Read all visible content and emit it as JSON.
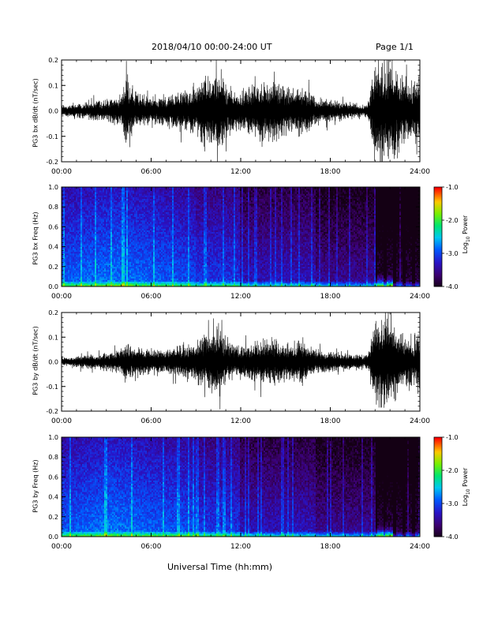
{
  "header": {
    "date_range": "2018/04/10   00:00-24:00 UT",
    "page_label": "Page 1/1"
  },
  "footer": {
    "xlabel": "Universal Time (hh:mm)"
  },
  "colorbar": {
    "label": "Log10 Power",
    "ticks": [
      "-1.0",
      "-2.0",
      "-3.0",
      "-4.0"
    ],
    "range": [
      -4.0,
      -1.0
    ]
  },
  "chart_data": [
    {
      "type": "line",
      "ylabel": "PG3 bx dB/dt (nT/sec)",
      "xlim": [
        0,
        24
      ],
      "ylim": [
        -0.2,
        0.2
      ],
      "xticks": [
        "00:00",
        "06:00",
        "12:00",
        "18:00",
        "24:00"
      ],
      "yticks": [
        "0.2",
        "0.1",
        "0.0",
        "-0.1",
        "-0.2"
      ],
      "envelope": {
        "x": [
          0,
          1,
          2,
          3,
          4,
          4.3,
          4.6,
          5,
          6,
          7,
          8,
          9,
          9.5,
          10,
          10.5,
          11,
          12,
          13,
          14,
          15,
          16,
          17,
          18,
          19,
          20,
          20.5,
          21,
          21.5,
          22,
          22.5,
          23,
          23.5,
          24
        ],
        "amp": [
          0.025,
          0.03,
          0.04,
          0.05,
          0.07,
          0.17,
          0.12,
          0.08,
          0.06,
          0.07,
          0.09,
          0.1,
          0.17,
          0.14,
          0.2,
          0.13,
          0.08,
          0.12,
          0.14,
          0.1,
          0.12,
          0.06,
          0.05,
          0.04,
          0.03,
          0.03,
          0.22,
          0.22,
          0.22,
          0.18,
          0.15,
          0.12,
          0.2
        ]
      }
    },
    {
      "type": "heatmap",
      "ylabel": "PG3 bx Freq (Hz)",
      "xlim": [
        0,
        24
      ],
      "ylim": [
        0.0,
        1.0
      ],
      "xticks": [
        "00:00",
        "06:00",
        "12:00",
        "18:00",
        "24:00"
      ],
      "yticks": [
        "1.0",
        "0.8",
        "0.6",
        "0.4",
        "0.2",
        "0.0"
      ],
      "zlim": [
        -4.0,
        -1.0
      ]
    },
    {
      "type": "line",
      "ylabel": "PG3 by dB/dt (nT/sec)",
      "xlim": [
        0,
        24
      ],
      "ylim": [
        -0.2,
        0.2
      ],
      "xticks": [
        "00:00",
        "06:00",
        "12:00",
        "18:00",
        "24:00"
      ],
      "yticks": [
        "0.2",
        "0.1",
        "0.0",
        "-0.1",
        "-0.2"
      ],
      "envelope": {
        "x": [
          0,
          1,
          2,
          3,
          4,
          4.3,
          4.6,
          5,
          6,
          7,
          8,
          9,
          9.5,
          10,
          10.5,
          11,
          12,
          13,
          14,
          15,
          16,
          17,
          18,
          19,
          20,
          20.5,
          21,
          21.5,
          22,
          22.5,
          23,
          23.5,
          24
        ],
        "amp": [
          0.02,
          0.025,
          0.035,
          0.04,
          0.06,
          0.1,
          0.08,
          0.07,
          0.06,
          0.06,
          0.08,
          0.09,
          0.12,
          0.13,
          0.18,
          0.09,
          0.07,
          0.09,
          0.11,
          0.09,
          0.1,
          0.06,
          0.05,
          0.04,
          0.035,
          0.03,
          0.22,
          0.22,
          0.22,
          0.15,
          0.12,
          0.1,
          0.16
        ]
      }
    },
    {
      "type": "heatmap",
      "ylabel": "PG3 by Freq (Hz)",
      "xlim": [
        0,
        24
      ],
      "ylim": [
        0.0,
        1.0
      ],
      "xticks": [
        "00:00",
        "06:00",
        "12:00",
        "18:00",
        "24:00"
      ],
      "yticks": [
        "1.0",
        "0.8",
        "0.6",
        "0.4",
        "0.2",
        "0.0"
      ],
      "zlim": [
        -4.0,
        -1.0
      ]
    }
  ]
}
